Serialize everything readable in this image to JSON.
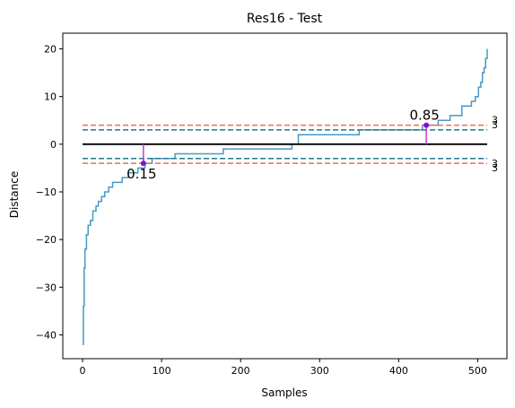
{
  "chart_data": {
    "type": "line",
    "title": "Res16 - Test",
    "xlabel": "Samples",
    "ylabel": "Distance",
    "xlim": [
      -25,
      537
    ],
    "ylim": [
      -45,
      23.3
    ],
    "xticks": [
      0,
      100,
      200,
      300,
      400,
      500
    ],
    "yticks": [
      -40,
      -30,
      -20,
      -10,
      0,
      10,
      20
    ],
    "grid": false,
    "colors": {
      "curve": "#4a98c2",
      "zero": "#000000",
      "inner_band": "#1a7b8c",
      "outer_band": "#f06e4e",
      "marker": "#c83cd2",
      "marker_point": "#7a10d8"
    },
    "curve_points": [
      [
        0,
        -42
      ],
      [
        1,
        -34
      ],
      [
        2,
        -26
      ],
      [
        3,
        -22
      ],
      [
        5,
        -19
      ],
      [
        7,
        -17
      ],
      [
        10,
        -16
      ],
      [
        13,
        -14
      ],
      [
        17,
        -13
      ],
      [
        20,
        -12
      ],
      [
        24,
        -11
      ],
      [
        28,
        -10
      ],
      [
        33,
        -9
      ],
      [
        38,
        -8
      ],
      [
        50,
        -7
      ],
      [
        58,
        -6
      ],
      [
        70,
        -5
      ],
      [
        79,
        -4
      ],
      [
        88,
        -3
      ],
      [
        117,
        -2
      ],
      [
        178,
        -1
      ],
      [
        265,
        0
      ],
      [
        273,
        2
      ],
      [
        350,
        3
      ],
      [
        430,
        4
      ],
      [
        450,
        5
      ],
      [
        465,
        6
      ],
      [
        480,
        8
      ],
      [
        492,
        9
      ],
      [
        497,
        10
      ],
      [
        501,
        12
      ],
      [
        504,
        13
      ],
      [
        506,
        15
      ],
      [
        508,
        16
      ],
      [
        510,
        18
      ],
      [
        512,
        20
      ]
    ],
    "zero_line": {
      "y": 0,
      "x_range": [
        0,
        512
      ]
    },
    "bands": [
      {
        "y": 4,
        "kind": "outer",
        "label": "3"
      },
      {
        "y": 3,
        "kind": "inner",
        "label": "3"
      },
      {
        "y": -3,
        "kind": "inner",
        "label": "3"
      },
      {
        "y": -4,
        "kind": "outer",
        "label": "3"
      }
    ],
    "annotations": [
      {
        "label": "0.15",
        "x": 77,
        "y": -4,
        "stem_from": 0,
        "label_position": "below"
      },
      {
        "label": "0.85",
        "x": 435,
        "y": 4,
        "stem_from": 0,
        "label_position": "above"
      }
    ]
  }
}
